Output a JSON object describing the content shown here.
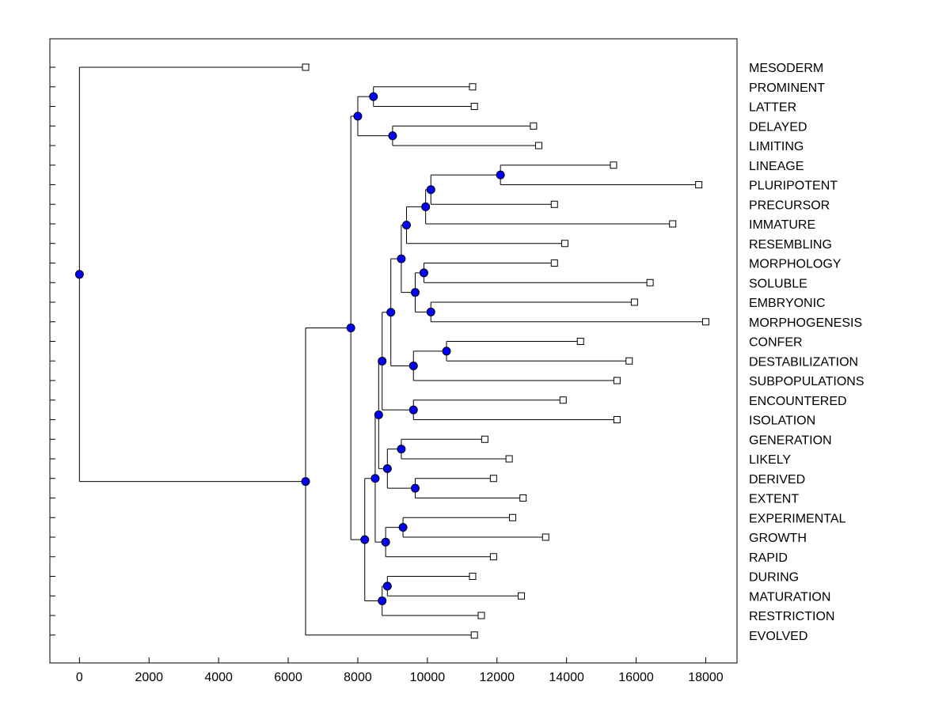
{
  "chart_data": {
    "type": "dendrogram",
    "title": "",
    "xlabel": "",
    "ylabel": "",
    "xlim": [
      -850,
      18900
    ],
    "x_ticks": [
      0,
      2000,
      4000,
      6000,
      8000,
      10000,
      12000,
      14000,
      16000,
      18000
    ],
    "colors": {
      "node_fill": "#0000ff",
      "node_stroke": "#000000",
      "line": "#000000",
      "leaf_fill": "#ffffff"
    },
    "leaves": [
      {
        "id": "MESODERM",
        "label": "MESODERM",
        "x": 6500
      },
      {
        "id": "PROMINENT",
        "label": "PROMINENT",
        "x": 11300
      },
      {
        "id": "LATTER",
        "label": "LATTER",
        "x": 11350
      },
      {
        "id": "DELAYED",
        "label": "DELAYED",
        "x": 13050
      },
      {
        "id": "LIMITING",
        "label": "LIMITING",
        "x": 13200
      },
      {
        "id": "LINEAGE",
        "label": "LINEAGE",
        "x": 15350
      },
      {
        "id": "PLURIPOTENT",
        "label": "PLURIPOTENT",
        "x": 17800
      },
      {
        "id": "PRECURSOR",
        "label": "PRECURSOR",
        "x": 13650
      },
      {
        "id": "IMMATURE",
        "label": "IMMATURE",
        "x": 17050
      },
      {
        "id": "RESEMBLING",
        "label": "RESEMBLING",
        "x": 13950
      },
      {
        "id": "MORPHOLOGY",
        "label": "MORPHOLOGY",
        "x": 13650
      },
      {
        "id": "SOLUBLE",
        "label": "SOLUBLE",
        "x": 16400
      },
      {
        "id": "EMBRYONIC",
        "label": "EMBRYONIC",
        "x": 15950
      },
      {
        "id": "MORPHOGENESIS",
        "label": "MORPHOGENESIS",
        "x": 18000
      },
      {
        "id": "CONFER",
        "label": "CONFER",
        "x": 14400
      },
      {
        "id": "DESTABILIZATION",
        "label": "DESTABILIZATION",
        "x": 15800
      },
      {
        "id": "SUBPOPULATIONS",
        "label": "SUBPOPULATIONS",
        "x": 15450
      },
      {
        "id": "ENCOUNTERED",
        "label": "ENCOUNTERED",
        "x": 13900
      },
      {
        "id": "ISOLATION",
        "label": "ISOLATION",
        "x": 15450
      },
      {
        "id": "GENERATION",
        "label": "GENERATION",
        "x": 11650
      },
      {
        "id": "LIKELY",
        "label": "LIKELY",
        "x": 12350
      },
      {
        "id": "DERIVED",
        "label": "DERIVED",
        "x": 11900
      },
      {
        "id": "EXTENT",
        "label": "EXTENT",
        "x": 12750
      },
      {
        "id": "EXPERIMENTAL",
        "label": "EXPERIMENTAL",
        "x": 12450
      },
      {
        "id": "GROWTH",
        "label": "GROWTH",
        "x": 13400
      },
      {
        "id": "RAPID",
        "label": "RAPID",
        "x": 11900
      },
      {
        "id": "DURING",
        "label": "DURING",
        "x": 11300
      },
      {
        "id": "MATURATION",
        "label": "MATURATION",
        "x": 12700
      },
      {
        "id": "RESTRICTION",
        "label": "RESTRICTION",
        "x": 11550
      },
      {
        "id": "EVOLVED",
        "label": "EVOLVED",
        "x": 11350
      }
    ],
    "nodes": [
      {
        "id": "n1",
        "x": 8450,
        "children": [
          "PROMINENT",
          "LATTER"
        ]
      },
      {
        "id": "n2",
        "x": 9000,
        "children": [
          "DELAYED",
          "LIMITING"
        ]
      },
      {
        "id": "n3",
        "x": 8000,
        "children": [
          "n1",
          "n2"
        ]
      },
      {
        "id": "n4",
        "x": 12100,
        "children": [
          "LINEAGE",
          "PLURIPOTENT"
        ]
      },
      {
        "id": "n5",
        "x": 10100,
        "children": [
          "n4",
          "PRECURSOR"
        ]
      },
      {
        "id": "n6",
        "x": 9950,
        "children": [
          "n5",
          "IMMATURE"
        ]
      },
      {
        "id": "n7",
        "x": 9400,
        "children": [
          "n6",
          "RESEMBLING"
        ]
      },
      {
        "id": "n8",
        "x": 9900,
        "children": [
          "MORPHOLOGY",
          "SOLUBLE"
        ]
      },
      {
        "id": "n9",
        "x": 10100,
        "children": [
          "EMBRYONIC",
          "MORPHOGENESIS"
        ]
      },
      {
        "id": "n10",
        "x": 9650,
        "children": [
          "n8",
          "n9"
        ]
      },
      {
        "id": "n11",
        "x": 9250,
        "children": [
          "n7",
          "n10"
        ]
      },
      {
        "id": "n12",
        "x": 10550,
        "children": [
          "CONFER",
          "DESTABILIZATION"
        ]
      },
      {
        "id": "n13",
        "x": 9600,
        "children": [
          "n12",
          "SUBPOPULATIONS"
        ]
      },
      {
        "id": "n14",
        "x": 8950,
        "children": [
          "n11",
          "n13"
        ]
      },
      {
        "id": "n15",
        "x": 9600,
        "children": [
          "ENCOUNTERED",
          "ISOLATION"
        ]
      },
      {
        "id": "n16",
        "x": 8700,
        "children": [
          "n14",
          "n15"
        ]
      },
      {
        "id": "n17",
        "x": 9250,
        "children": [
          "GENERATION",
          "LIKELY"
        ]
      },
      {
        "id": "n18",
        "x": 9650,
        "children": [
          "DERIVED",
          "EXTENT"
        ]
      },
      {
        "id": "n19",
        "x": 8850,
        "children": [
          "n17",
          "n18"
        ]
      },
      {
        "id": "n20",
        "x": 8600,
        "children": [
          "n16",
          "n19"
        ]
      },
      {
        "id": "n21",
        "x": 9300,
        "children": [
          "EXPERIMENTAL",
          "GROWTH"
        ]
      },
      {
        "id": "n22",
        "x": 8800,
        "children": [
          "n21",
          "RAPID"
        ]
      },
      {
        "id": "n23",
        "x": 8500,
        "children": [
          "n20",
          "n22"
        ]
      },
      {
        "id": "n24",
        "x": 8850,
        "children": [
          "DURING",
          "MATURATION"
        ]
      },
      {
        "id": "n25",
        "x": 8700,
        "children": [
          "n24",
          "RESTRICTION"
        ]
      },
      {
        "id": "n26",
        "x": 8200,
        "children": [
          "n23",
          "n25"
        ]
      },
      {
        "id": "n27",
        "x": 7800,
        "children": [
          "n3",
          "n26"
        ]
      },
      {
        "id": "n28",
        "x": 6500,
        "children": [
          "n27",
          "EVOLVED"
        ]
      },
      {
        "id": "root",
        "x": 0,
        "children": [
          "MESODERM",
          "n28"
        ]
      }
    ]
  }
}
